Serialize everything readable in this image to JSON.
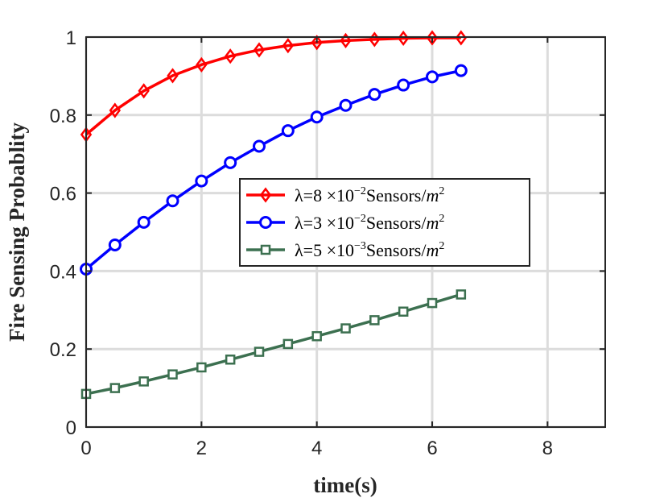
{
  "chart_data": {
    "type": "line",
    "xlabel": "time(s)",
    "ylabel": "Fire Sensing Probablity",
    "xlim": [
      0,
      9
    ],
    "ylim": [
      0,
      1
    ],
    "xticks": [
      "0",
      "2",
      "4",
      "6",
      "8"
    ],
    "yticks": [
      "0",
      "0.2",
      "0.4",
      "0.6",
      "0.8",
      "1"
    ],
    "grid": true,
    "legend_position": "center",
    "x": [
      0,
      0.5,
      1,
      1.5,
      2,
      2.5,
      3,
      3.5,
      4,
      4.5,
      5,
      5.5,
      6,
      6.5
    ],
    "series": [
      {
        "name": "λ=8 ×10^-2 Sensors/m^2",
        "legend": {
          "pre": "λ=8 ×10",
          "exp": "−2",
          "mid": "Sensors/",
          "m": "m",
          "pow": "2"
        },
        "color": "#ff0000",
        "marker": "diamond",
        "values": [
          0.75,
          0.812,
          0.862,
          0.901,
          0.929,
          0.951,
          0.967,
          0.978,
          0.986,
          0.991,
          0.994,
          0.997,
          0.998,
          0.998
        ]
      },
      {
        "name": "λ=3 ×10^-2 Sensors/m^2",
        "legend": {
          "pre": "λ=3 ×10",
          "exp": "−2",
          "mid": "Sensors/",
          "m": "m",
          "pow": "2"
        },
        "color": "#0000ff",
        "marker": "circle",
        "values": [
          0.405,
          0.467,
          0.525,
          0.58,
          0.631,
          0.678,
          0.72,
          0.76,
          0.795,
          0.825,
          0.853,
          0.877,
          0.898,
          0.914
        ]
      },
      {
        "name": "λ=5 ×10^-3 Sensors/m^2",
        "legend": {
          "pre": "λ=5 ×10",
          "exp": "−3",
          "mid": "Sensors/",
          "m": "m",
          "pow": "2"
        },
        "color": "#3c7050",
        "marker": "square",
        "values": [
          0.085,
          0.1,
          0.117,
          0.135,
          0.153,
          0.173,
          0.193,
          0.213,
          0.233,
          0.253,
          0.274,
          0.296,
          0.318,
          0.34
        ]
      }
    ]
  }
}
